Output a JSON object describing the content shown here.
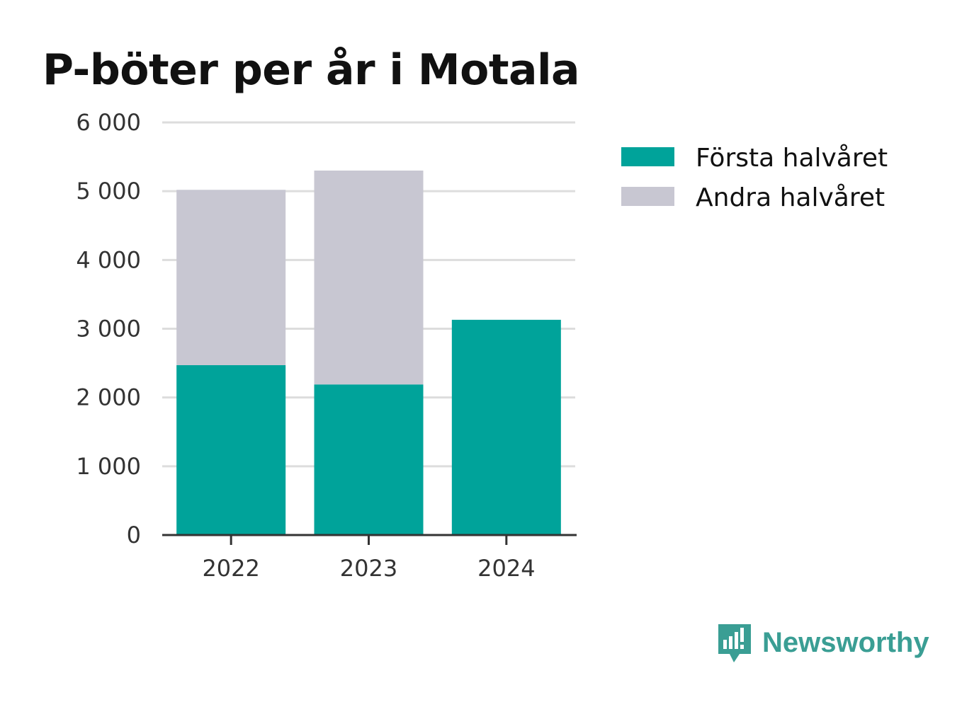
{
  "chart_data": {
    "type": "bar",
    "stacked": true,
    "title": "P-böter per år i Motala",
    "categories": [
      "2022",
      "2023",
      "2024"
    ],
    "series": [
      {
        "name": "Första halvåret",
        "values": [
          2470,
          2190,
          3130
        ],
        "color": "#00a39a"
      },
      {
        "name": "Andra halvåret",
        "values": [
          2550,
          3110,
          0
        ],
        "color": "#c8c7d2"
      }
    ],
    "ylim": [
      0,
      6000
    ],
    "yticks": [
      "0",
      "1 000",
      "2 000",
      "3 000",
      "4 000",
      "5 000",
      "6 000"
    ],
    "ytick_values": [
      0,
      1000,
      2000,
      3000,
      4000,
      5000,
      6000
    ],
    "grid": true,
    "legend": "right"
  },
  "brand": {
    "name": "Newsworthy",
    "color": "#3a9e94",
    "icon": "bar-chart-speech-bubble-icon"
  }
}
